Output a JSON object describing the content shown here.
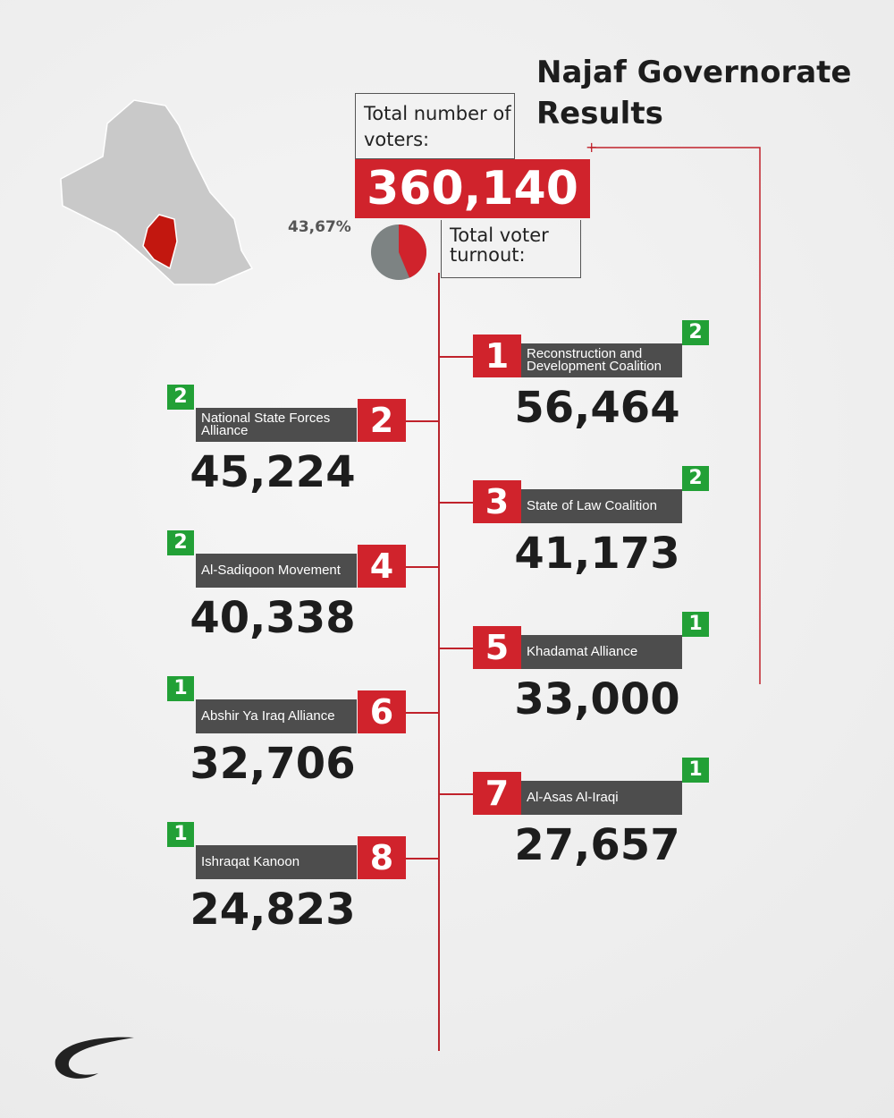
{
  "header": {
    "title": "Najaf Governorate Results"
  },
  "voters": {
    "label": "Total number of voters:",
    "value": "360,140"
  },
  "turnout": {
    "label": "Total voter turnout:",
    "value": 43.67,
    "value_label": "43,67%"
  },
  "parties": [
    {
      "rank": 1,
      "name": "Reconstruction and Development Coalition",
      "votes": "56,464",
      "seats": 2
    },
    {
      "rank": 2,
      "name": "National State Forces Alliance",
      "votes": "45,224",
      "seats": 2
    },
    {
      "rank": 3,
      "name": "State of Law Coalition",
      "votes": "41,173",
      "seats": 2
    },
    {
      "rank": 4,
      "name": "Al-Sadiqoon Movement",
      "votes": "40,338",
      "seats": 2
    },
    {
      "rank": 5,
      "name": "Khadamat Alliance",
      "votes": "33,000",
      "seats": 1
    },
    {
      "rank": 6,
      "name": "Abshir Ya Iraq Alliance",
      "votes": "32,706",
      "seats": 1
    },
    {
      "rank": 7,
      "name": "Al-Asas Al-Iraqi",
      "votes": "27,657",
      "seats": 1
    },
    {
      "rank": 8,
      "name": "Ishraqat Kanoon",
      "votes": "24,823",
      "seats": 1
    }
  ]
}
